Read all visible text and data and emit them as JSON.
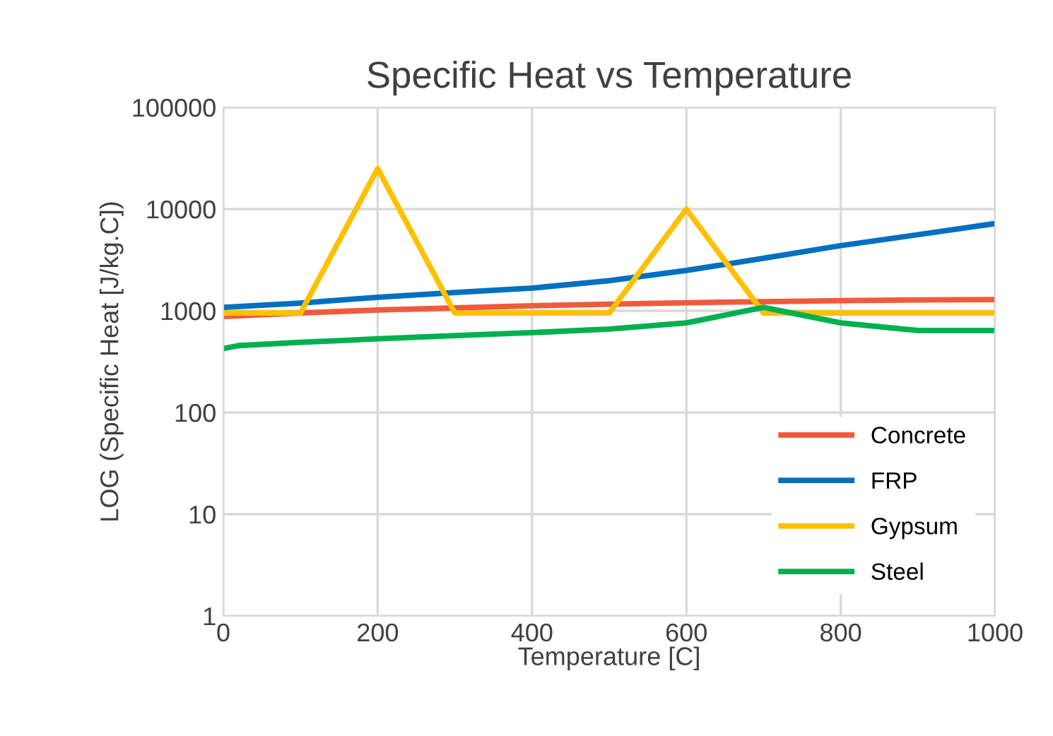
{
  "chart_data": {
    "type": "line",
    "title": "Specific Heat vs Temperature",
    "xlabel": "Temperature [C]",
    "ylabel": "LOG (Specific Heat [J/kg.C])",
    "log": "y",
    "grid": true,
    "legend": "bottom right",
    "xlim": [
      0,
      1000
    ],
    "xticks": [
      0,
      200,
      400,
      600,
      800,
      1000
    ],
    "ylim": [
      1,
      100000
    ],
    "yticks": [
      1,
      10,
      100,
      1000,
      10000,
      100000
    ],
    "series": [
      {
        "name": "Concrete",
        "color": "#f05a3c",
        "x": [
          0,
          100,
          200,
          300,
          400,
          500,
          600,
          700,
          800,
          900,
          1000
        ],
        "values": [
          880,
          950,
          1020,
          1070,
          1120,
          1160,
          1200,
          1230,
          1260,
          1280,
          1290
        ]
      },
      {
        "name": "FRP",
        "color": "#0070c0",
        "x": [
          0,
          100,
          200,
          300,
          400,
          500,
          600,
          700,
          800,
          900,
          1000
        ],
        "values": [
          1080,
          1190,
          1360,
          1510,
          1670,
          1980,
          2490,
          3280,
          4370,
          5600,
          7200
        ]
      },
      {
        "name": "Gypsum",
        "color": "#ffc000",
        "x": [
          0,
          100,
          200,
          300,
          400,
          500,
          600,
          700,
          800,
          900,
          1000
        ],
        "values": [
          950,
          950,
          25000,
          950,
          950,
          950,
          10000,
          950,
          950,
          950,
          950
        ]
      },
      {
        "name": "Steel",
        "color": "#00b050",
        "x": [
          0,
          20,
          100,
          200,
          300,
          400,
          500,
          600,
          700,
          800,
          900,
          1000
        ],
        "values": [
          425,
          455,
          490,
          530,
          570,
          610,
          660,
          760,
          1080,
          760,
          640,
          640
        ]
      }
    ]
  }
}
